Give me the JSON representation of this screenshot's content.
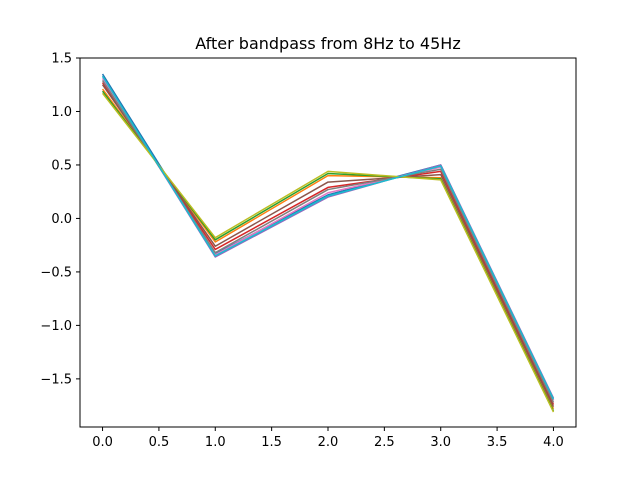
{
  "chart_data": {
    "type": "line",
    "title": "After bandpass from 8Hz to 45Hz",
    "xlabel": "",
    "ylabel": "",
    "xlim": [
      -0.2,
      4.2
    ],
    "ylim": [
      -1.95,
      1.5
    ],
    "xticks": [
      0.0,
      0.5,
      1.0,
      1.5,
      2.0,
      2.5,
      3.0,
      3.5,
      4.0
    ],
    "xtick_labels": [
      "0.0",
      "0.5",
      "1.0",
      "1.5",
      "2.0",
      "2.5",
      "3.0",
      "3.5",
      "4.0"
    ],
    "yticks": [
      1.5,
      1.0,
      0.5,
      0.0,
      -0.5,
      -1.0,
      -1.5
    ],
    "ytick_labels": [
      "1.5",
      "1.0",
      "0.5",
      "0.0",
      "−0.5",
      "−1.0",
      "−1.5"
    ],
    "grid": false,
    "legend": false,
    "x": [
      0,
      1,
      2,
      3,
      4
    ],
    "series": [
      {
        "color": "#1f77b4",
        "values": [
          1.35,
          -0.33,
          0.22,
          0.5,
          -1.7
        ]
      },
      {
        "color": "#ff7f0e",
        "values": [
          1.21,
          -0.22,
          0.4,
          0.38,
          -1.78
        ]
      },
      {
        "color": "#2ca02c",
        "values": [
          1.19,
          -0.2,
          0.42,
          0.37,
          -1.8
        ]
      },
      {
        "color": "#d62728",
        "values": [
          1.27,
          -0.29,
          0.29,
          0.44,
          -1.74
        ]
      },
      {
        "color": "#9467bd",
        "values": [
          1.33,
          -0.36,
          0.2,
          0.5,
          -1.68
        ]
      },
      {
        "color": "#8c564b",
        "values": [
          1.25,
          -0.26,
          0.34,
          0.41,
          -1.76
        ]
      },
      {
        "color": "#e377c2",
        "values": [
          1.31,
          -0.34,
          0.24,
          0.48,
          -1.7
        ]
      },
      {
        "color": "#7f7f7f",
        "values": [
          1.29,
          -0.32,
          0.27,
          0.46,
          -1.72
        ]
      },
      {
        "color": "#bcbd22",
        "values": [
          1.17,
          -0.18,
          0.44,
          0.36,
          -1.81
        ]
      },
      {
        "color": "#17becf",
        "values": [
          1.33,
          -0.35,
          0.21,
          0.49,
          -1.69
        ]
      }
    ]
  }
}
